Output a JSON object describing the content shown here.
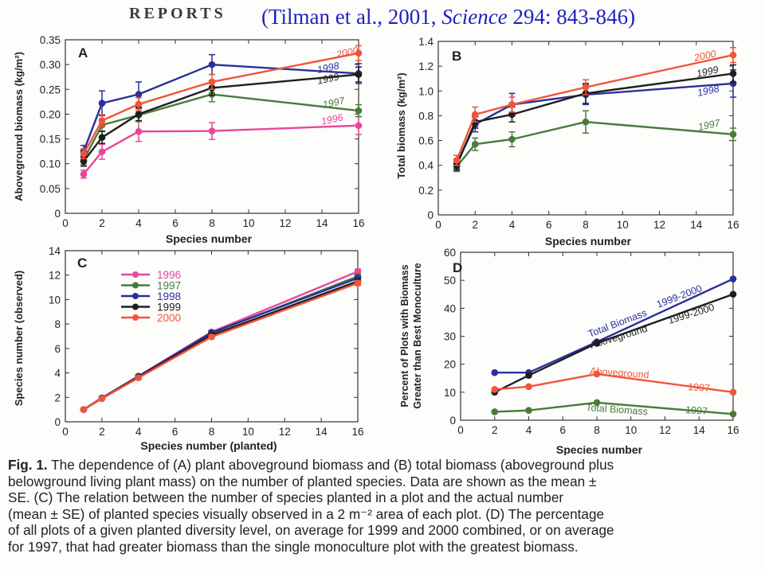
{
  "header": {
    "section": "REPORTS",
    "citation_prefix": "(Tilman et al., 2001, ",
    "citation_journal": "Science",
    "citation_suffix": " 294: 843-846)"
  },
  "caption": {
    "lines": [
      {
        "bold": "Fig. 1.",
        "text": " The dependence of (A) plant aboveground biomass and (B) total biomass (aboveground plus"
      },
      {
        "bold": "",
        "text": "belowground living plant mass) on the number of planted species. Data are shown as the mean ±"
      },
      {
        "bold": "",
        "text": "SE. (C) The relation between the number of species planted in a plot and the actual number"
      },
      {
        "bold": "",
        "text": "(mean ± SE) of planted species visually observed in a 2 m⁻² area of each plot. (D) The percentage"
      },
      {
        "bold": "",
        "text": "of all plots of a given planted diversity level, on average for 1999 and 2000 combined, or on average"
      },
      {
        "bold": "",
        "text": "for 1997, that had greater biomass than the single monoculture plot with the greatest biomass."
      }
    ]
  },
  "colors": {
    "1996": "#e8479a",
    "1997": "#4a7a3c",
    "1998": "#2a2f9a",
    "1999": "#1e1e1e",
    "2000": "#f0553a"
  },
  "chart_data": [
    {
      "type": "line",
      "panel": "A",
      "xlabel": "Species number",
      "ylabel": "Aboveground biomass (kg/m²)",
      "xlim": [
        0,
        16
      ],
      "ylim": [
        0,
        0.35
      ],
      "xticks": [
        0,
        2,
        4,
        6,
        8,
        10,
        12,
        14,
        16
      ],
      "yticks": [
        0,
        0.05,
        0.1,
        0.15,
        0.2,
        0.25,
        0.3,
        0.35
      ],
      "ytick_labels": [
        "0",
        "0.05",
        "0.10",
        "0.15",
        "0.20",
        "0.25",
        "0.30",
        "0.35"
      ],
      "x": [
        1,
        2,
        4,
        8,
        16
      ],
      "series": [
        {
          "name": "1996",
          "values": [
            0.079,
            0.124,
            0.165,
            0.166,
            0.177
          ],
          "err": [
            0.008,
            0.015,
            0.02,
            0.017,
            0.018
          ]
        },
        {
          "name": "1997",
          "values": [
            0.108,
            0.178,
            0.198,
            0.24,
            0.207
          ],
          "err": [
            0.01,
            0.012,
            0.013,
            0.015,
            0.012
          ]
        },
        {
          "name": "1998",
          "values": [
            0.125,
            0.222,
            0.24,
            0.3,
            0.282
          ],
          "err": [
            0.012,
            0.025,
            0.025,
            0.02,
            0.02
          ]
        },
        {
          "name": "1999",
          "values": [
            0.105,
            0.153,
            0.2,
            0.253,
            0.28
          ],
          "err": [
            0.01,
            0.012,
            0.013,
            0.015,
            0.015
          ]
        },
        {
          "name": "2000",
          "values": [
            0.12,
            0.187,
            0.22,
            0.265,
            0.323
          ],
          "err": [
            0.01,
            0.012,
            0.013,
            0.015,
            0.015
          ]
        }
      ],
      "line_labels": [
        {
          "series": "2000",
          "text": "2000"
        },
        {
          "series": "1998",
          "text": "1998"
        },
        {
          "series": "1999",
          "text": "1999"
        },
        {
          "series": "1997",
          "text": "1997"
        },
        {
          "series": "1996",
          "text": "1996"
        }
      ]
    },
    {
      "type": "line",
      "panel": "B",
      "xlabel": "Species number",
      "ylabel": "Total biomass (kg/m²)",
      "xlim": [
        0,
        16
      ],
      "ylim": [
        0,
        1.4
      ],
      "xticks": [
        0,
        2,
        4,
        6,
        8,
        10,
        12,
        14,
        16
      ],
      "yticks": [
        0,
        0.2,
        0.4,
        0.6,
        0.8,
        1.0,
        1.2,
        1.4
      ],
      "ytick_labels": [
        "0",
        "0.2",
        "0.4",
        "0.6",
        "0.8",
        "1.0",
        "1.2",
        "1.4"
      ],
      "x": [
        1,
        2,
        4,
        8,
        16
      ],
      "series": [
        {
          "name": "1997",
          "values": [
            0.39,
            0.57,
            0.61,
            0.75,
            0.65
          ],
          "err": [
            0.04,
            0.05,
            0.06,
            0.09,
            0.05
          ]
        },
        {
          "name": "1998",
          "values": [
            0.41,
            0.73,
            0.89,
            0.97,
            1.06
          ],
          "err": [
            0.04,
            0.06,
            0.09,
            0.08,
            0.11
          ]
        },
        {
          "name": "1999",
          "values": [
            0.4,
            0.75,
            0.81,
            0.98,
            1.14
          ],
          "err": [
            0.04,
            0.05,
            0.06,
            0.08,
            0.07
          ]
        },
        {
          "name": "2000",
          "values": [
            0.44,
            0.81,
            0.89,
            1.03,
            1.29
          ],
          "err": [
            0.04,
            0.06,
            0.06,
            0.06,
            0.06
          ]
        }
      ],
      "line_labels": [
        {
          "series": "2000",
          "text": "2000"
        },
        {
          "series": "1999",
          "text": "1999"
        },
        {
          "series": "1998",
          "text": "1998"
        },
        {
          "series": "1997",
          "text": "1997"
        }
      ]
    },
    {
      "type": "line",
      "panel": "C",
      "xlabel": "Species number (planted)",
      "ylabel": "Species number (observed)",
      "xlim": [
        0,
        16
      ],
      "ylim": [
        0,
        14
      ],
      "xticks": [
        0,
        2,
        4,
        6,
        8,
        10,
        12,
        14,
        16
      ],
      "yticks": [
        0,
        2,
        4,
        6,
        8,
        10,
        12,
        14
      ],
      "ytick_labels": [
        "0",
        "2",
        "4",
        "6",
        "8",
        "10",
        "12",
        "14"
      ],
      "x": [
        1,
        2,
        4,
        8,
        16
      ],
      "series": [
        {
          "name": "1996",
          "values": [
            1.0,
            1.95,
            3.75,
            7.35,
            12.3
          ],
          "err": [
            0.05,
            0.08,
            0.1,
            0.15,
            0.2
          ]
        },
        {
          "name": "1997",
          "values": [
            1.0,
            1.95,
            3.7,
            7.25,
            11.9
          ],
          "err": [
            0.05,
            0.08,
            0.1,
            0.15,
            0.2
          ]
        },
        {
          "name": "1998",
          "values": [
            1.0,
            1.95,
            3.7,
            7.3,
            11.75
          ],
          "err": [
            0.05,
            0.08,
            0.1,
            0.15,
            0.2
          ]
        },
        {
          "name": "1999",
          "values": [
            1.0,
            1.9,
            3.65,
            7.1,
            11.5
          ],
          "err": [
            0.05,
            0.08,
            0.1,
            0.15,
            0.2
          ]
        },
        {
          "name": "2000",
          "values": [
            1.0,
            1.9,
            3.6,
            6.95,
            11.35
          ],
          "err": [
            0.05,
            0.08,
            0.1,
            0.15,
            0.2
          ]
        }
      ],
      "legend": [
        "1996",
        "1997",
        "1998",
        "1999",
        "2000"
      ]
    },
    {
      "type": "line",
      "panel": "D",
      "xlabel": "Species number",
      "ylabel": "Percent of Plots with Biomass Greater than Best Monoculture",
      "xlim": [
        0,
        16
      ],
      "ylim": [
        0,
        60
      ],
      "xticks": [
        0,
        2,
        4,
        6,
        8,
        10,
        12,
        14,
        16
      ],
      "yticks": [
        0,
        10,
        20,
        30,
        40,
        50,
        60
      ],
      "ytick_labels": [
        "0",
        "10",
        "20",
        "30",
        "40",
        "50",
        "60"
      ],
      "x": [
        2,
        4,
        8,
        16
      ],
      "series": [
        {
          "key": "tb9900",
          "color_key": "1998",
          "values": [
            17,
            17,
            28,
            50.5
          ]
        },
        {
          "key": "ag9900",
          "color_key": "1999",
          "values": [
            10,
            16,
            27.5,
            45
          ]
        },
        {
          "key": "ag97",
          "color_key": "2000",
          "values": [
            11,
            12,
            16.5,
            10
          ]
        },
        {
          "key": "tb97",
          "color_key": "1997",
          "values": [
            3,
            3.5,
            6.3,
            2.2
          ]
        }
      ],
      "line_labels": [
        {
          "series": "tb9900",
          "left": "Total Biomass",
          "right": "1999-2000"
        },
        {
          "series": "ag9900",
          "left": "Aboveground",
          "right": "1999-2000"
        },
        {
          "series": "ag97",
          "left": "Aboveground",
          "right": "1997"
        },
        {
          "series": "tb97",
          "left": "Total Biomass",
          "right": "1997"
        }
      ]
    }
  ]
}
